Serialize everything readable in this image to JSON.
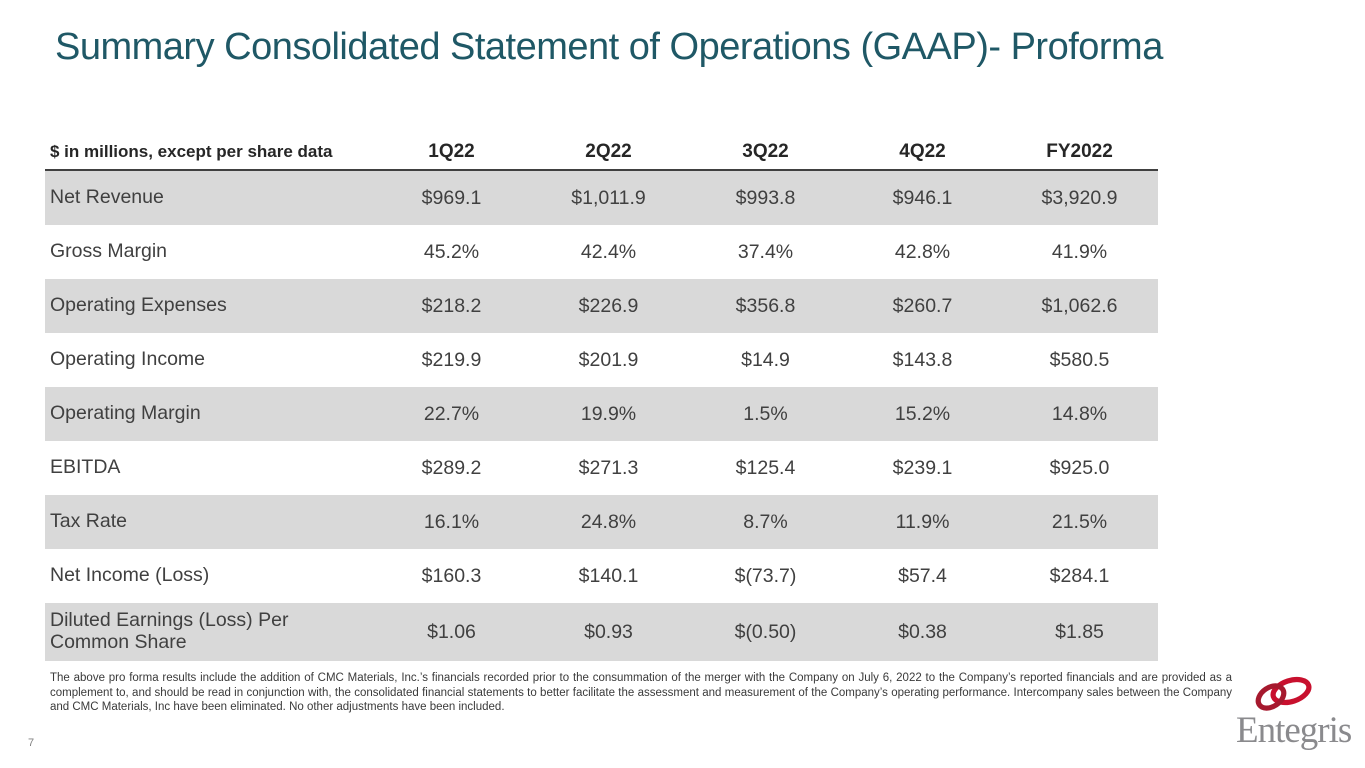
{
  "slide": {
    "title": "Summary Consolidated Statement of Operations (GAAP)- Proforma",
    "page_number": "7"
  },
  "table": {
    "unit_label": "$ in millions, except per share data",
    "columns": [
      "1Q22",
      "2Q22",
      "3Q22",
      "4Q22",
      "FY2022"
    ],
    "rows": [
      {
        "label": "Net Revenue",
        "values": [
          "$969.1",
          "$1,011.9",
          "$993.8",
          "$946.1",
          "$3,920.9"
        ],
        "shaded": true
      },
      {
        "label": "Gross Margin",
        "values": [
          "45.2%",
          "42.4%",
          "37.4%",
          "42.8%",
          "41.9%"
        ],
        "shaded": false
      },
      {
        "label": "Operating Expenses",
        "values": [
          "$218.2",
          "$226.9",
          "$356.8",
          "$260.7",
          "$1,062.6"
        ],
        "shaded": true
      },
      {
        "label": "Operating Income",
        "values": [
          "$219.9",
          "$201.9",
          "$14.9",
          "$143.8",
          "$580.5"
        ],
        "shaded": false
      },
      {
        "label": "Operating Margin",
        "values": [
          "22.7%",
          "19.9%",
          "1.5%",
          "15.2%",
          "14.8%"
        ],
        "shaded": true
      },
      {
        "label": "EBITDA",
        "values": [
          "$289.2",
          "$271.3",
          "$125.4",
          "$239.1",
          "$925.0"
        ],
        "shaded": false
      },
      {
        "label": "Tax Rate",
        "values": [
          "16.1%",
          "24.8%",
          "8.7%",
          "11.9%",
          "21.5%"
        ],
        "shaded": true
      },
      {
        "label": "Net Income (Loss)",
        "values": [
          "$160.3",
          "$140.1",
          "$(73.7)",
          "$57.4",
          "$284.1"
        ],
        "shaded": false
      },
      {
        "label": "Diluted Earnings (Loss) Per Common Share",
        "values": [
          "$1.06",
          "$0.93",
          "$(0.50)",
          "$0.38",
          "$1.85"
        ],
        "shaded": true
      }
    ]
  },
  "footnote": "The above pro forma results include the addition of CMC Materials, Inc.’s financials recorded prior to the consummation of the merger with the Company on July 6, 2022 to the Company’s reported financials and are provided as a complement to, and should be read in conjunction with, the consolidated financial statements to better facilitate the assessment and measurement of the Company’s operating performance. Intercompany sales between the Company and CMC Materials, Inc have been eliminated. No other adjustments have been included.",
  "logo": {
    "name": "Entegris"
  },
  "colors": {
    "title": "#1f5866",
    "row_shade": "#d9d9d9",
    "table_text": "#404040",
    "header_border": "#404040",
    "ring_dark": "#a6192e",
    "ring_bright": "#c8102e",
    "logo_text": "#8a8a8d"
  }
}
